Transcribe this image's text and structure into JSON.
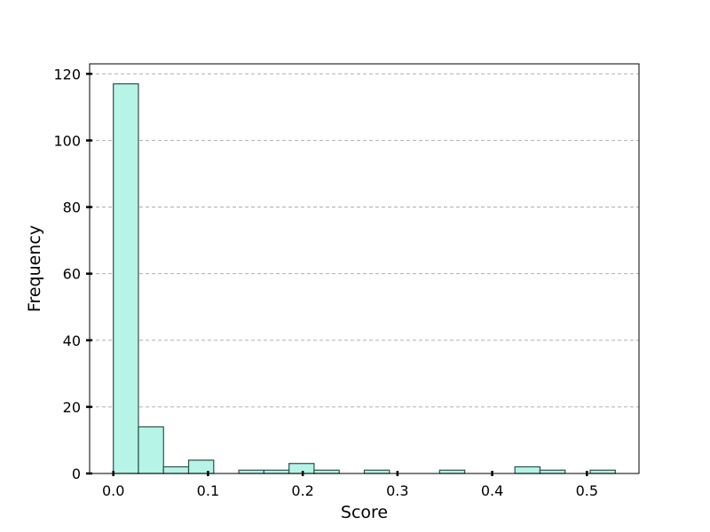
{
  "chart_data": {
    "type": "bar",
    "title": "",
    "xlabel": "Score",
    "ylabel": "Frequency",
    "xlim": [
      -0.025,
      0.555
    ],
    "ylim": [
      0,
      123
    ],
    "grid": {
      "y": true,
      "x": false,
      "style": "dashed"
    },
    "bin_width": 0.0265,
    "bins": [
      {
        "x0": 0.0,
        "count": 117
      },
      {
        "x0": 0.0265,
        "count": 14
      },
      {
        "x0": 0.053,
        "count": 2
      },
      {
        "x0": 0.0795,
        "count": 4
      },
      {
        "x0": 0.106,
        "count": 0
      },
      {
        "x0": 0.1325,
        "count": 1
      },
      {
        "x0": 0.159,
        "count": 1
      },
      {
        "x0": 0.1855,
        "count": 3
      },
      {
        "x0": 0.212,
        "count": 1
      },
      {
        "x0": 0.2385,
        "count": 0
      },
      {
        "x0": 0.265,
        "count": 1
      },
      {
        "x0": 0.2915,
        "count": 0
      },
      {
        "x0": 0.318,
        "count": 0
      },
      {
        "x0": 0.3445,
        "count": 1
      },
      {
        "x0": 0.371,
        "count": 0
      },
      {
        "x0": 0.3975,
        "count": 0
      },
      {
        "x0": 0.424,
        "count": 2
      },
      {
        "x0": 0.4505,
        "count": 1
      },
      {
        "x0": 0.477,
        "count": 0
      },
      {
        "x0": 0.5035,
        "count": 1
      }
    ],
    "x_ticks": [
      {
        "value": 0.0,
        "label": "0.0"
      },
      {
        "value": 0.1,
        "label": "0.1"
      },
      {
        "value": 0.2,
        "label": "0.2"
      },
      {
        "value": 0.3,
        "label": "0.3"
      },
      {
        "value": 0.4,
        "label": "0.4"
      },
      {
        "value": 0.5,
        "label": "0.5"
      }
    ],
    "y_ticks": [
      {
        "value": 0,
        "label": "0"
      },
      {
        "value": 20,
        "label": "20"
      },
      {
        "value": 40,
        "label": "40"
      },
      {
        "value": 60,
        "label": "60"
      },
      {
        "value": 80,
        "label": "80"
      },
      {
        "value": 100,
        "label": "100"
      },
      {
        "value": 120,
        "label": "120"
      }
    ],
    "colors": {
      "bar_fill": "#b5f4e6",
      "bar_edge": "#2f4f4a",
      "grid": "#b0b0b0",
      "axis": "#000000"
    }
  }
}
